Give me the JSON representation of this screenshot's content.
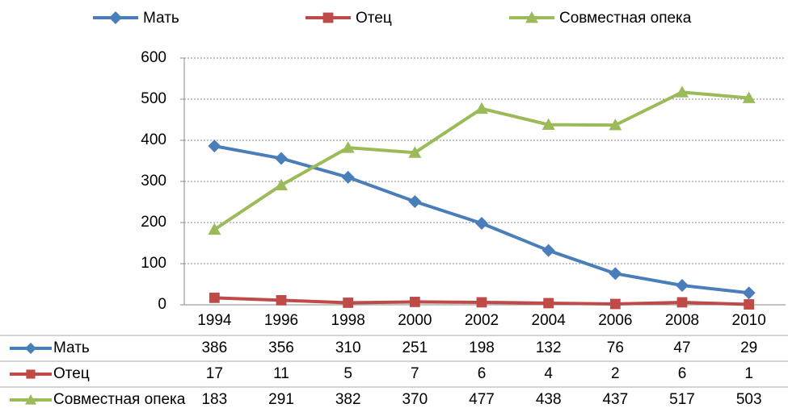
{
  "chart_data": {
    "type": "line",
    "categories": [
      "1994",
      "1996",
      "1998",
      "2000",
      "2002",
      "2004",
      "2006",
      "2008",
      "2010"
    ],
    "series": [
      {
        "name": "Мать",
        "color": "#4a7ebb",
        "marker": "diamond",
        "values": [
          386,
          356,
          310,
          251,
          198,
          132,
          76,
          47,
          29
        ]
      },
      {
        "name": "Отец",
        "color": "#be4b48",
        "marker": "square",
        "values": [
          17,
          11,
          5,
          7,
          6,
          4,
          2,
          6,
          1
        ]
      },
      {
        "name": "Совместная опека",
        "color": "#9bbb59",
        "marker": "triangle",
        "values": [
          183,
          291,
          382,
          370,
          477,
          438,
          437,
          517,
          503
        ]
      }
    ],
    "ylim": [
      0,
      600
    ],
    "yticks": [
      0,
      100,
      200,
      300,
      400,
      500,
      600
    ],
    "grid": true,
    "legend": "top",
    "data_table": true
  }
}
